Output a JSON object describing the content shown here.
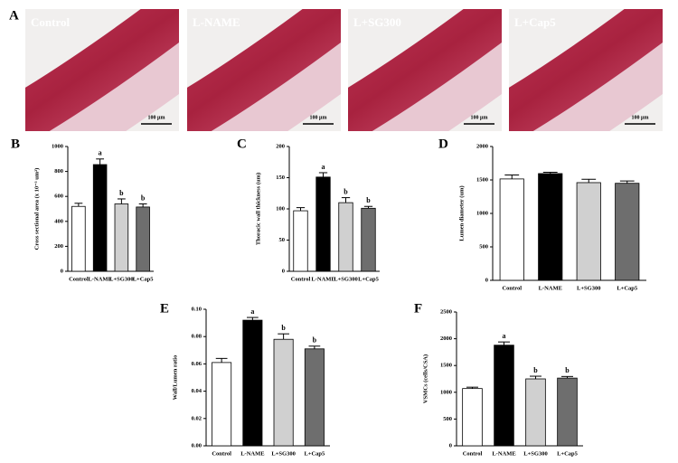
{
  "panel_a": {
    "label": "A",
    "images": [
      {
        "label": "Control",
        "scale_bar": "100 μm"
      },
      {
        "label": "L-NAME",
        "scale_bar": "100 μm"
      },
      {
        "label": "L+SG300",
        "scale_bar": "100 μm"
      },
      {
        "label": "L+Cap5",
        "scale_bar": "100 μm"
      }
    ]
  },
  "chart_data": [
    {
      "type": "bar",
      "panel_label": "B",
      "ylabel": "Cross sectional area (x 10⁻³ um²)",
      "categories": [
        "Control",
        "L-NAME",
        "L+SG300",
        "L+Cap5"
      ],
      "values": [
        520,
        855,
        540,
        515
      ],
      "errors": [
        25,
        45,
        40,
        25
      ],
      "annotations": [
        null,
        "a",
        "b",
        "b"
      ],
      "colors": [
        "#ffffff",
        "#000000",
        "#d0d0d0",
        "#6e6e6e"
      ],
      "ylim": [
        0,
        1000
      ],
      "yticks": [
        0,
        200,
        400,
        600,
        800,
        1000
      ]
    },
    {
      "type": "bar",
      "panel_label": "C",
      "ylabel": "Thoracic wall thickness (um)",
      "categories": [
        "Control",
        "L-NAME",
        "L+SG300",
        "L+Cap5"
      ],
      "values": [
        97,
        151,
        110,
        101
      ],
      "errors": [
        5,
        7,
        8,
        3
      ],
      "annotations": [
        null,
        "a",
        "b",
        "b"
      ],
      "colors": [
        "#ffffff",
        "#000000",
        "#d0d0d0",
        "#6e6e6e"
      ],
      "ylim": [
        0,
        200
      ],
      "yticks": [
        0,
        50,
        100,
        150,
        200
      ]
    },
    {
      "type": "bar",
      "panel_label": "D",
      "ylabel": "Lumen diameter (um)",
      "categories": [
        "Control",
        "L-NAME",
        "L+SG300",
        "L+Cap5"
      ],
      "values": [
        1515,
        1595,
        1460,
        1450
      ],
      "errors": [
        60,
        20,
        50,
        35
      ],
      "annotations": [
        null,
        null,
        null,
        null
      ],
      "colors": [
        "#ffffff",
        "#000000",
        "#d0d0d0",
        "#6e6e6e"
      ],
      "ylim": [
        0,
        2000
      ],
      "yticks": [
        0,
        500,
        1000,
        1500,
        2000
      ]
    },
    {
      "type": "bar",
      "panel_label": "E",
      "ylabel": "Wall/Lumen ratio",
      "categories": [
        "Control",
        "L-NAME",
        "L+SG300",
        "L+Cap5"
      ],
      "values": [
        0.061,
        0.092,
        0.078,
        0.071
      ],
      "errors": [
        0.003,
        0.002,
        0.004,
        0.002
      ],
      "annotations": [
        null,
        "a",
        "b",
        "b"
      ],
      "colors": [
        "#ffffff",
        "#000000",
        "#d0d0d0",
        "#6e6e6e"
      ],
      "ylim": [
        0,
        0.1
      ],
      "yticks": [
        {
          "value": 0,
          "label": "0.00"
        },
        {
          "value": 0.02,
          "label": "0.02"
        },
        {
          "value": 0.04,
          "label": "0.04"
        },
        {
          "value": 0.06,
          "label": "0.06"
        },
        {
          "value": 0.08,
          "label": "0.08"
        },
        {
          "value": 0.1,
          "label": "0.10"
        }
      ]
    },
    {
      "type": "bar",
      "panel_label": "F",
      "ylabel": "VSMCs (cells/CSA)",
      "categories": [
        "Control",
        "L-NAME",
        "L+SG300",
        "L+Cap5"
      ],
      "values": [
        1070,
        1880,
        1250,
        1265
      ],
      "errors": [
        25,
        60,
        50,
        30
      ],
      "annotations": [
        null,
        "a",
        "b",
        "b"
      ],
      "colors": [
        "#ffffff",
        "#000000",
        "#d0d0d0",
        "#6e6e6e"
      ],
      "ylim": [
        0,
        2500
      ],
      "yticks": [
        0,
        500,
        1000,
        1500,
        2000,
        2500
      ]
    }
  ]
}
